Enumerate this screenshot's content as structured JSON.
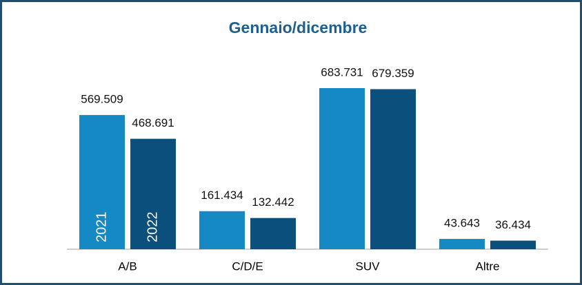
{
  "chart_data": {
    "type": "bar",
    "title": "Gennaio/dicembre",
    "categories": [
      "A/B",
      "C/D/E",
      "SUV",
      "Altre"
    ],
    "series": [
      {
        "name": "2021",
        "color": "#1589c4",
        "values": [
          569509,
          161434,
          683731,
          43643
        ],
        "value_labels": [
          "569.509",
          "161.434",
          "683.731",
          "43.643"
        ]
      },
      {
        "name": "2022",
        "color": "#0b4f7c",
        "values": [
          468691,
          132442,
          679359,
          36434
        ],
        "value_labels": [
          "468.691",
          "132.442",
          "679.359",
          "36.434"
        ]
      }
    ]
  }
}
